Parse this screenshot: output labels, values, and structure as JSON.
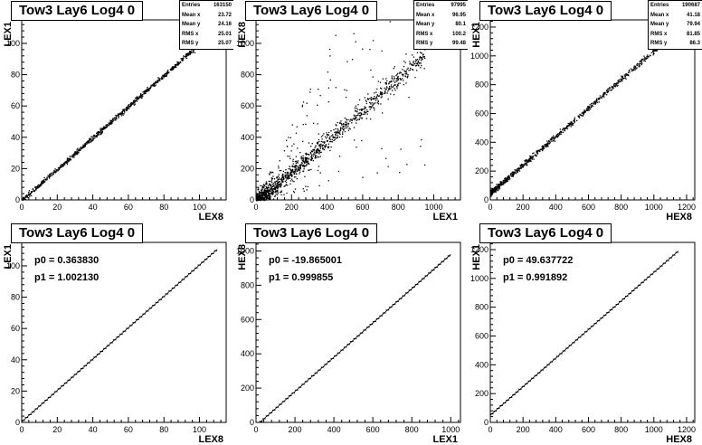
{
  "chart_data": [
    {
      "type": "scatter",
      "title": "Tow3 Lay6 Log4 0",
      "xlabel": "LEX8",
      "ylabel": "LEX1",
      "xlim": [
        0,
        115
      ],
      "ylim": [
        0,
        115
      ],
      "xticks": [
        0,
        20,
        40,
        60,
        80,
        100
      ],
      "yticks": [
        0,
        20,
        40,
        60,
        80,
        100
      ],
      "stats": [
        {
          "label": "Entries",
          "value": "163150"
        },
        {
          "label": "Mean x",
          "value": "23.72"
        },
        {
          "label": "Mean y",
          "value": "24.16"
        },
        {
          "label": "RMS x",
          "value": "25.01"
        },
        {
          "label": "RMS y",
          "value": "25.07"
        }
      ],
      "trend": {
        "slope": 1.0,
        "intercept": 0,
        "xmax": 110
      }
    },
    {
      "type": "scatter",
      "title": "Tow3 Lay6 Log4 0",
      "xlabel": "LEX1",
      "ylabel": "HEX8",
      "xlim": [
        0,
        1150
      ],
      "ylim": [
        0,
        1150
      ],
      "xticks": [
        0,
        200,
        400,
        600,
        800,
        1000
      ],
      "yticks": [
        0,
        200,
        400,
        600,
        800,
        1000
      ],
      "stats": [
        {
          "label": "Entries",
          "value": "97995"
        },
        {
          "label": "Mean x",
          "value": "96.95"
        },
        {
          "label": "Mean y",
          "value": "80.1"
        },
        {
          "label": "RMS x",
          "value": "100.2"
        },
        {
          "label": "RMS y",
          "value": "99.48"
        }
      ],
      "trend": {
        "slope": 1.0,
        "intercept": -20,
        "xmax": 950
      }
    },
    {
      "type": "scatter",
      "title": "Tow3 Lay6 Log4 0",
      "xlabel": "HEX8",
      "ylabel": "HEX1",
      "xlim": [
        0,
        1250
      ],
      "ylim": [
        0,
        1250
      ],
      "xticks": [
        0,
        200,
        400,
        600,
        800,
        1000,
        1200
      ],
      "yticks": [
        0,
        200,
        400,
        600,
        800,
        1000,
        1200
      ],
      "stats": [
        {
          "label": "Entries",
          "value": "190687"
        },
        {
          "label": "Mean x",
          "value": "41.18"
        },
        {
          "label": "Mean y",
          "value": "79.94"
        },
        {
          "label": "RMS x",
          "value": "81.85"
        },
        {
          "label": "RMS y",
          "value": "86.3"
        }
      ],
      "trend": {
        "slope": 0.99,
        "intercept": 50,
        "xmax": 1150
      }
    },
    {
      "type": "line",
      "title": "Tow3 Lay6 Log4 0",
      "xlabel": "LEX8",
      "ylabel": "LEX1",
      "xlim": [
        0,
        115
      ],
      "ylim": [
        0,
        115
      ],
      "xticks": [
        0,
        20,
        40,
        60,
        80,
        100
      ],
      "yticks": [
        0,
        20,
        40,
        60,
        80,
        100
      ],
      "fit": {
        "p0": "p0 = 0.363830",
        "p1": "p1 = 1.002130",
        "p0_val": 0.36383,
        "p1_val": 1.00213,
        "xmax": 110
      }
    },
    {
      "type": "line",
      "title": "Tow3 Lay6 Log4 0",
      "xlabel": "LEX1",
      "ylabel": "HEX8",
      "xlim": [
        0,
        1050
      ],
      "ylim": [
        0,
        1050
      ],
      "xticks": [
        0,
        200,
        400,
        600,
        800,
        1000
      ],
      "yticks": [
        0,
        200,
        400,
        600,
        800,
        1000
      ],
      "fit": {
        "p0": "p0 = -19.865001",
        "p1": "p1 = 0.999855",
        "p0_val": -19.865001,
        "p1_val": 0.999855,
        "xmax": 1000
      }
    },
    {
      "type": "line",
      "title": "Tow3 Lay6 Log4 0",
      "xlabel": "HEX8",
      "ylabel": "HEX1",
      "xlim": [
        0,
        1250
      ],
      "ylim": [
        0,
        1250
      ],
      "xticks": [
        0,
        200,
        400,
        600,
        800,
        1000,
        1200
      ],
      "yticks": [
        0,
        200,
        400,
        600,
        800,
        1000,
        1200
      ],
      "fit": {
        "p0": "p0 = 49.637722",
        "p1": "p1 = 0.991892",
        "p0_val": 49.637722,
        "p1_val": 0.991892,
        "xmax": 1150
      }
    }
  ]
}
